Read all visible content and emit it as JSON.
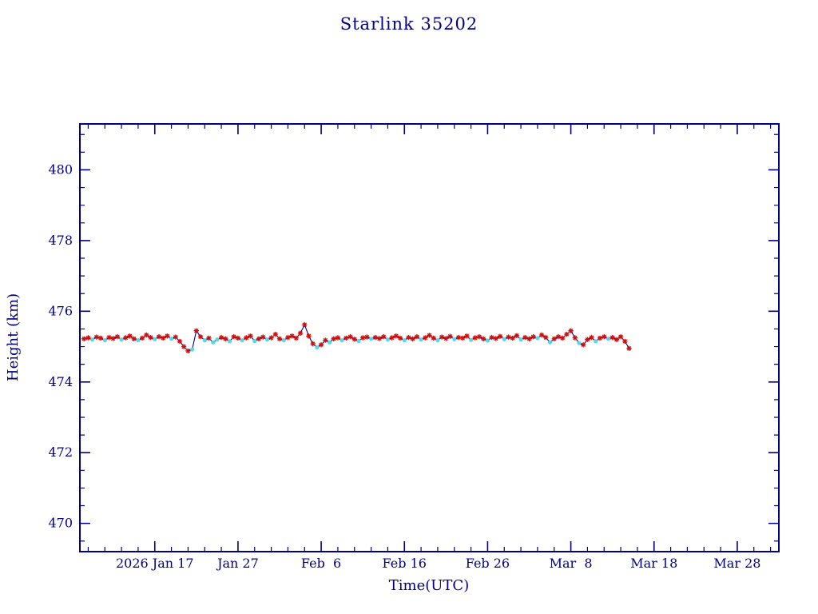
{
  "title": "Starlink 35202",
  "chart_data": {
    "type": "line",
    "title": "Starlink 35202",
    "xlabel": "Time(UTC)",
    "ylabel": "Height (km)",
    "x_axis_unit": "days from 2026 Jan 8 (axis origin)",
    "x_range_days": [
      0,
      84
    ],
    "x_tick_days": [
      9,
      19,
      29,
      39,
      49,
      59,
      69,
      79
    ],
    "x_tick_labels": [
      "2026 Jan 17",
      "Jan 27",
      "Feb  6",
      "Feb 16",
      "Feb 26",
      "Mar  8",
      "Mar 18",
      "Mar 28"
    ],
    "x_minor_step_days": 2,
    "ylim": [
      469.2,
      481.3
    ],
    "y_ticks": [
      470,
      472,
      474,
      476,
      478,
      480
    ],
    "y_minor_step": 0.5,
    "grid": false,
    "legend": "none",
    "colors": {
      "axis": "#000080",
      "text": "#000080",
      "line": "#000080",
      "marker_red": "#cc1111",
      "marker_cyan": "#55d8e8",
      "background": "#ffffff"
    },
    "series_note": "red asterisk markers and cyan dot markers connected by a navy line; height ~475.25 km, spike to ~475.6 near Feb 4, dips to ~474.9 near Jan 21 and Feb 6, data ends ~Mar 15",
    "points": [
      [
        0.5,
        475.22,
        0
      ],
      [
        1.0,
        475.25,
        0
      ],
      [
        1.5,
        475.2,
        1
      ],
      [
        2.0,
        475.27,
        0
      ],
      [
        2.5,
        475.24,
        0
      ],
      [
        3.0,
        475.18,
        1
      ],
      [
        3.5,
        475.26,
        0
      ],
      [
        4.0,
        475.23,
        0
      ],
      [
        4.5,
        475.28,
        0
      ],
      [
        5.0,
        475.2,
        1
      ],
      [
        5.5,
        475.25,
        0
      ],
      [
        6.0,
        475.3,
        0
      ],
      [
        6.5,
        475.22,
        0
      ],
      [
        7.0,
        475.18,
        1
      ],
      [
        7.5,
        475.24,
        0
      ],
      [
        8.0,
        475.33,
        0
      ],
      [
        8.5,
        475.26,
        0
      ],
      [
        9.0,
        475.21,
        1
      ],
      [
        9.5,
        475.28,
        0
      ],
      [
        10.0,
        475.24,
        0
      ],
      [
        10.5,
        475.3,
        0
      ],
      [
        11.0,
        475.22,
        1
      ],
      [
        11.5,
        475.27,
        0
      ],
      [
        12.0,
        475.15,
        0
      ],
      [
        12.5,
        475.0,
        0
      ],
      [
        13.0,
        474.88,
        0
      ],
      [
        13.5,
        474.92,
        1
      ],
      [
        14.0,
        475.45,
        0
      ],
      [
        14.5,
        475.28,
        0
      ],
      [
        15.0,
        475.18,
        1
      ],
      [
        15.5,
        475.24,
        0
      ],
      [
        16.0,
        475.12,
        1
      ],
      [
        16.5,
        475.2,
        1
      ],
      [
        17.0,
        475.26,
        0
      ],
      [
        17.5,
        475.22,
        0
      ],
      [
        18.0,
        475.15,
        1
      ],
      [
        18.5,
        475.28,
        0
      ],
      [
        19.0,
        475.24,
        0
      ],
      [
        19.5,
        475.18,
        1
      ],
      [
        20.0,
        475.25,
        0
      ],
      [
        20.5,
        475.3,
        0
      ],
      [
        21.0,
        475.16,
        1
      ],
      [
        21.5,
        475.22,
        0
      ],
      [
        22.0,
        475.27,
        0
      ],
      [
        22.5,
        475.2,
        1
      ],
      [
        23.0,
        475.25,
        0
      ],
      [
        23.5,
        475.35,
        0
      ],
      [
        24.0,
        475.22,
        0
      ],
      [
        24.5,
        475.18,
        1
      ],
      [
        25.0,
        475.26,
        0
      ],
      [
        25.5,
        475.3,
        0
      ],
      [
        26.0,
        475.24,
        0
      ],
      [
        26.5,
        475.38,
        0
      ],
      [
        27.0,
        475.62,
        0
      ],
      [
        27.5,
        475.3,
        0
      ],
      [
        28.0,
        475.08,
        0
      ],
      [
        28.5,
        474.98,
        1
      ],
      [
        29.0,
        475.05,
        0
      ],
      [
        29.5,
        475.18,
        0
      ],
      [
        30.0,
        475.12,
        1
      ],
      [
        30.5,
        475.22,
        0
      ],
      [
        31.0,
        475.25,
        0
      ],
      [
        31.5,
        475.18,
        1
      ],
      [
        32.0,
        475.24,
        0
      ],
      [
        32.5,
        475.28,
        0
      ],
      [
        33.0,
        475.21,
        0
      ],
      [
        33.5,
        475.16,
        1
      ],
      [
        34.0,
        475.25,
        0
      ],
      [
        34.5,
        475.27,
        0
      ],
      [
        35.0,
        475.22,
        1
      ],
      [
        35.5,
        475.26,
        0
      ],
      [
        36.0,
        475.23,
        0
      ],
      [
        36.5,
        475.28,
        0
      ],
      [
        37.0,
        475.2,
        1
      ],
      [
        37.5,
        475.25,
        0
      ],
      [
        38.0,
        475.3,
        0
      ],
      [
        38.5,
        475.24,
        0
      ],
      [
        39.0,
        475.18,
        1
      ],
      [
        39.5,
        475.26,
        0
      ],
      [
        40.0,
        475.22,
        0
      ],
      [
        40.5,
        475.28,
        0
      ],
      [
        41.0,
        475.2,
        1
      ],
      [
        41.5,
        475.25,
        0
      ],
      [
        42.0,
        475.32,
        0
      ],
      [
        42.5,
        475.24,
        0
      ],
      [
        43.0,
        475.18,
        1
      ],
      [
        43.5,
        475.27,
        0
      ],
      [
        44.0,
        475.23,
        0
      ],
      [
        44.5,
        475.29,
        0
      ],
      [
        45.0,
        475.21,
        1
      ],
      [
        45.5,
        475.26,
        0
      ],
      [
        46.0,
        475.24,
        0
      ],
      [
        46.5,
        475.3,
        0
      ],
      [
        47.0,
        475.19,
        1
      ],
      [
        47.5,
        475.25,
        0
      ],
      [
        48.0,
        475.28,
        0
      ],
      [
        48.5,
        475.22,
        0
      ],
      [
        49.0,
        475.17,
        1
      ],
      [
        49.5,
        475.26,
        0
      ],
      [
        50.0,
        475.23,
        0
      ],
      [
        50.5,
        475.29,
        0
      ],
      [
        51.0,
        475.21,
        1
      ],
      [
        51.5,
        475.27,
        0
      ],
      [
        52.0,
        475.24,
        0
      ],
      [
        52.5,
        475.31,
        0
      ],
      [
        53.0,
        475.2,
        1
      ],
      [
        53.5,
        475.26,
        0
      ],
      [
        54.0,
        475.22,
        0
      ],
      [
        54.5,
        475.28,
        0
      ],
      [
        55.0,
        475.24,
        1
      ],
      [
        55.5,
        475.33,
        0
      ],
      [
        56.0,
        475.26,
        0
      ],
      [
        56.5,
        475.12,
        1
      ],
      [
        57.0,
        475.22,
        0
      ],
      [
        57.5,
        475.28,
        0
      ],
      [
        58.0,
        475.24,
        0
      ],
      [
        58.5,
        475.35,
        0
      ],
      [
        59.0,
        475.45,
        0
      ],
      [
        59.5,
        475.25,
        0
      ],
      [
        60.0,
        475.1,
        1
      ],
      [
        60.5,
        475.05,
        0
      ],
      [
        61.0,
        475.2,
        0
      ],
      [
        61.5,
        475.26,
        0
      ],
      [
        62.0,
        475.15,
        1
      ],
      [
        62.5,
        475.24,
        0
      ],
      [
        63.0,
        475.28,
        0
      ],
      [
        63.5,
        475.22,
        1
      ],
      [
        64.0,
        475.26,
        0
      ],
      [
        64.5,
        475.2,
        0
      ],
      [
        65.0,
        475.28,
        0
      ],
      [
        65.5,
        475.15,
        0
      ],
      [
        66.0,
        474.95,
        0
      ]
    ]
  }
}
